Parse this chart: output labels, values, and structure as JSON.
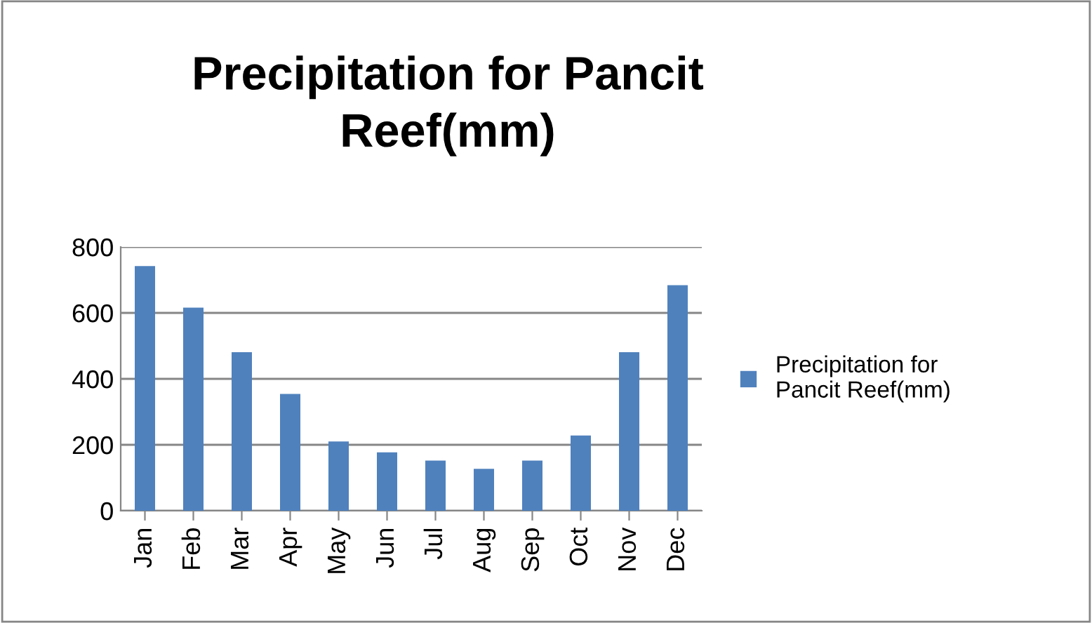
{
  "chart_data": {
    "type": "bar",
    "title": "Precipitation for Pancit\nReef(mm)",
    "categories": [
      "Jan",
      "Feb",
      "Mar",
      "Apr",
      "May",
      "Jun",
      "Jul",
      "Aug",
      "Sep",
      "Oct",
      "Nov",
      "Dec"
    ],
    "series": [
      {
        "name": "Precipitation for\nPancit Reef(mm)",
        "color": "#4f81bd",
        "values": [
          742,
          616,
          481,
          354,
          210,
          177,
          152,
          127,
          152,
          228,
          481,
          684
        ]
      }
    ],
    "ylim": [
      0,
      800
    ],
    "yticks": [
      0,
      200,
      400,
      600,
      800
    ],
    "grid": "y",
    "legend": "right"
  }
}
